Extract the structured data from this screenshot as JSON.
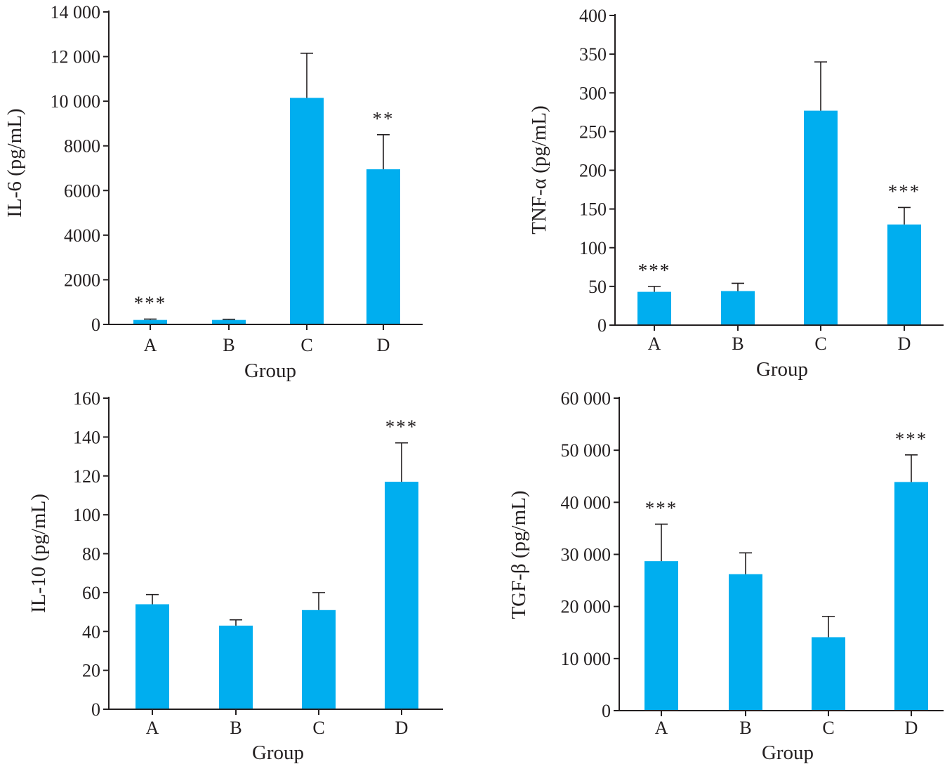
{
  "colors": {
    "bar": "#00aeef",
    "axis": "#231f20"
  },
  "chart_data": [
    {
      "type": "bar",
      "title": "",
      "xlabel": "Group",
      "ylabel": "IL-6 (pg/mL)",
      "categories": [
        "A",
        "B",
        "C",
        "D"
      ],
      "values": [
        200,
        200,
        10150,
        6950
      ],
      "errors": [
        40,
        30,
        2000,
        1550
      ],
      "ylim": [
        0,
        14000
      ],
      "yticks": [
        0,
        2000,
        4000,
        6000,
        8000,
        10000,
        12000,
        14000
      ],
      "ytick_labels": [
        "0",
        "2000",
        "4000",
        "6000",
        "8000",
        "10 000",
        "12 000",
        "14 000"
      ],
      "significance": [
        "***",
        "",
        "",
        "**"
      ]
    },
    {
      "type": "bar",
      "title": "",
      "xlabel": "Group",
      "ylabel": "TNF-α (pg/mL)",
      "categories": [
        "A",
        "B",
        "C",
        "D"
      ],
      "values": [
        43,
        44,
        277,
        130
      ],
      "errors": [
        7,
        10,
        63,
        22
      ],
      "ylim": [
        0,
        400
      ],
      "yticks": [
        0,
        50,
        100,
        150,
        200,
        250,
        300,
        350,
        400
      ],
      "ytick_labels": [
        "0",
        "50",
        "100",
        "150",
        "200",
        "250",
        "300",
        "350",
        "400"
      ],
      "significance": [
        "***",
        "",
        "",
        "***"
      ]
    },
    {
      "type": "bar",
      "title": "",
      "xlabel": "Group",
      "ylabel": "IL-10 (pg/mL)",
      "categories": [
        "A",
        "B",
        "C",
        "D"
      ],
      "values": [
        54,
        43,
        51,
        117
      ],
      "errors": [
        5,
        3,
        9,
        20
      ],
      "ylim": [
        0,
        160
      ],
      "yticks": [
        0,
        20,
        40,
        60,
        80,
        100,
        120,
        140,
        160
      ],
      "ytick_labels": [
        "0",
        "20",
        "40",
        "60",
        "80",
        "100",
        "120",
        "140",
        "160"
      ],
      "significance": [
        "",
        "",
        "",
        "***"
      ]
    },
    {
      "type": "bar",
      "title": "",
      "xlabel": "Group",
      "ylabel": "TGF-β (pg/mL)",
      "categories": [
        "A",
        "B",
        "C",
        "D"
      ],
      "values": [
        28700,
        26200,
        14100,
        43900
      ],
      "errors": [
        7100,
        4100,
        4000,
        5200
      ],
      "ylim": [
        0,
        60000
      ],
      "yticks": [
        0,
        10000,
        20000,
        30000,
        40000,
        50000,
        60000
      ],
      "ytick_labels": [
        "0",
        "10 000",
        "20 000",
        "30 000",
        "40 000",
        "50 000",
        "60 000"
      ],
      "significance": [
        "***",
        "",
        "",
        "***"
      ]
    }
  ]
}
